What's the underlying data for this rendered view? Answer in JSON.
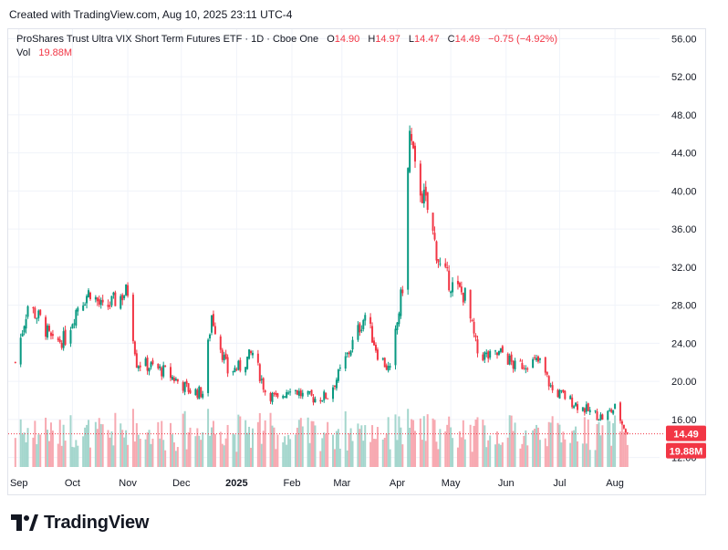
{
  "header": {
    "text": "Created with TradingView.com, Aug 10, 2025 23:11 UTC-4"
  },
  "legend": {
    "title": "ProShares Trust Ultra VIX Short Term Futures ETF · 1D · Cboe One",
    "open_label": "O",
    "open": "14.90",
    "high_label": "H",
    "high": "14.97",
    "low_label": "L",
    "low": "14.47",
    "close_label": "C",
    "close": "14.49",
    "change": "−0.75 (−4.92%)",
    "vol_label": "Vol",
    "vol": "19.88M"
  },
  "logo": {
    "text": "TradingView",
    "icon": "tradingview-logo-icon"
  },
  "colors": {
    "up": "#089981",
    "down": "#f23645",
    "vol_up": "#a4d6cd",
    "vol_down": "#f7a9b1",
    "grid": "#f0f3fa",
    "last_price": "#f23645"
  },
  "chart_data": {
    "type": "candlestick",
    "title": "",
    "xlabel": "",
    "ylabel": "",
    "ylim": [
      11,
      57
    ],
    "grid": true,
    "y_ticks": [
      "12.00",
      "16.00",
      "20.00",
      "24.00",
      "28.00",
      "32.00",
      "36.00",
      "40.00",
      "44.00",
      "48.00",
      "52.00",
      "56.00"
    ],
    "x_ticks": [
      "Sep",
      "Oct",
      "Nov",
      "Dec",
      "2025",
      "Feb",
      "Mar",
      "Apr",
      "May",
      "Jun",
      "Jul",
      "Aug"
    ],
    "last_price": {
      "value": 14.49,
      "label": "14.49"
    },
    "last_volume": {
      "label": "19.88M"
    },
    "series": [
      {
        "date": "2024-08-30",
        "close": 22
      },
      {
        "date": "2024-09-06",
        "close": 28
      },
      {
        "date": "2024-09-13",
        "close": 26.5
      },
      {
        "date": "2024-09-20",
        "close": 24
      },
      {
        "date": "2024-09-27",
        "close": 24.5
      },
      {
        "date": "2024-10-04",
        "close": 28
      },
      {
        "date": "2024-10-11",
        "close": 29.5
      },
      {
        "date": "2024-10-18",
        "close": 27.5
      },
      {
        "date": "2024-10-25",
        "close": 28.5
      },
      {
        "date": "2024-11-01",
        "close": 29.5
      },
      {
        "date": "2024-11-06",
        "close": 22
      },
      {
        "date": "2024-11-15",
        "close": 21.5
      },
      {
        "date": "2024-11-22",
        "close": 21
      },
      {
        "date": "2024-11-29",
        "close": 20
      },
      {
        "date": "2024-12-06",
        "close": 19
      },
      {
        "date": "2024-12-13",
        "close": 18.8
      },
      {
        "date": "2024-12-18",
        "close": 27
      },
      {
        "date": "2024-12-27",
        "close": 21
      },
      {
        "date": "2025-01-03",
        "close": 21.5
      },
      {
        "date": "2025-01-10",
        "close": 23
      },
      {
        "date": "2025-01-17",
        "close": 19
      },
      {
        "date": "2025-01-24",
        "close": 18
      },
      {
        "date": "2025-01-31",
        "close": 19.5
      },
      {
        "date": "2025-02-07",
        "close": 18.5
      },
      {
        "date": "2025-02-14",
        "close": 18.2
      },
      {
        "date": "2025-02-21",
        "close": 18.5
      },
      {
        "date": "2025-02-28",
        "close": 21
      },
      {
        "date": "2025-03-07",
        "close": 24
      },
      {
        "date": "2025-03-14",
        "close": 27
      },
      {
        "date": "2025-03-21",
        "close": 23
      },
      {
        "date": "2025-03-28",
        "close": 21
      },
      {
        "date": "2025-04-04",
        "close": 30
      },
      {
        "date": "2025-04-08",
        "close": 46
      },
      {
        "date": "2025-04-11",
        "close": 42
      },
      {
        "date": "2025-04-18",
        "close": 38
      },
      {
        "date": "2025-04-25",
        "close": 32
      },
      {
        "date": "2025-05-02",
        "close": 30
      },
      {
        "date": "2025-05-09",
        "close": 29
      },
      {
        "date": "2025-05-16",
        "close": 23
      },
      {
        "date": "2025-05-23",
        "close": 22.5
      },
      {
        "date": "2025-05-30",
        "close": 23
      },
      {
        "date": "2025-06-06",
        "close": 21.5
      },
      {
        "date": "2025-06-13",
        "close": 22
      },
      {
        "date": "2025-06-20",
        "close": 22
      },
      {
        "date": "2025-06-27",
        "close": 19
      },
      {
        "date": "2025-07-03",
        "close": 18.5
      },
      {
        "date": "2025-07-11",
        "close": 17.5
      },
      {
        "date": "2025-07-18",
        "close": 16.8
      },
      {
        "date": "2025-07-25",
        "close": 16.2
      },
      {
        "date": "2025-08-01",
        "close": 17.2
      },
      {
        "date": "2025-08-08",
        "close": 14.49
      }
    ]
  }
}
